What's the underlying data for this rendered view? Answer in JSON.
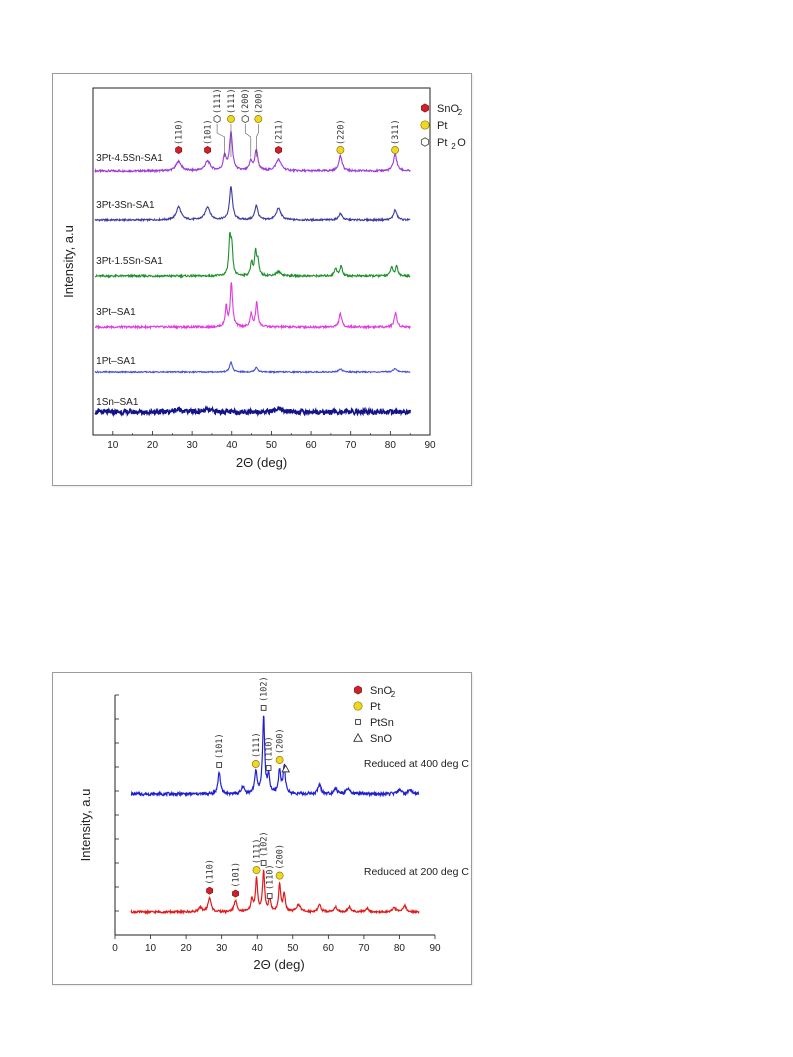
{
  "chart_data": [
    {
      "type": "line",
      "xlabel": "2Θ (deg)",
      "ylabel": "Intensity, a.u",
      "xlim": [
        5,
        90
      ],
      "xticks": [
        10,
        20,
        30,
        40,
        50,
        60,
        70,
        80,
        90
      ],
      "legend": {
        "placement": "top-right",
        "entries": [
          {
            "marker": "hexagon-filled",
            "color": "#d0202a",
            "label": "SnO",
            "sub": "2"
          },
          {
            "marker": "circle-filled",
            "color": "#f0d820",
            "label": "Pt",
            "sub": ""
          },
          {
            "marker": "hexagon-open",
            "color": "#555555",
            "label": "Pt",
            "sub": "2",
            "suffix": "O"
          }
        ]
      },
      "series": [
        {
          "name": "3Pt-4.5Sn-SA1",
          "color": "#9b3ad6",
          "peaks": [
            {
              "x": 26.6,
              "h": 0.25,
              "w": 0.8
            },
            {
              "x": 33.9,
              "h": 0.25,
              "w": 0.8
            },
            {
              "x": 38.2,
              "h": 0.4,
              "w": 0.4
            },
            {
              "x": 39.8,
              "h": 1.0,
              "w": 0.45
            },
            {
              "x": 44.8,
              "h": 0.25,
              "w": 0.4
            },
            {
              "x": 46.2,
              "h": 0.55,
              "w": 0.45
            },
            {
              "x": 51.8,
              "h": 0.3,
              "w": 0.8
            },
            {
              "x": 67.4,
              "h": 0.4,
              "w": 0.5
            },
            {
              "x": 81.2,
              "h": 0.45,
              "w": 0.5
            }
          ]
        },
        {
          "name": "3Pt-3Sn-SA1",
          "color": "#3a3aa0",
          "peaks": [
            {
              "x": 26.6,
              "h": 0.4,
              "w": 0.7
            },
            {
              "x": 33.9,
              "h": 0.4,
              "w": 0.7
            },
            {
              "x": 39.8,
              "h": 1.0,
              "w": 0.45
            },
            {
              "x": 46.2,
              "h": 0.45,
              "w": 0.45
            },
            {
              "x": 51.8,
              "h": 0.35,
              "w": 0.7
            },
            {
              "x": 67.4,
              "h": 0.2,
              "w": 0.5
            },
            {
              "x": 81.2,
              "h": 0.3,
              "w": 0.5
            }
          ]
        },
        {
          "name": "3Pt-1.5Sn-SA1",
          "color": "#1e8f2a",
          "peaks": [
            {
              "x": 39.5,
              "h": 0.9,
              "w": 0.3
            },
            {
              "x": 40.0,
              "h": 0.7,
              "w": 0.3
            },
            {
              "x": 45.0,
              "h": 0.35,
              "w": 0.3
            },
            {
              "x": 46.0,
              "h": 0.6,
              "w": 0.3
            },
            {
              "x": 46.6,
              "h": 0.35,
              "w": 0.3
            },
            {
              "x": 51.8,
              "h": 0.1,
              "w": 0.8
            },
            {
              "x": 66.2,
              "h": 0.2,
              "w": 0.35
            },
            {
              "x": 67.6,
              "h": 0.25,
              "w": 0.35
            },
            {
              "x": 80.3,
              "h": 0.22,
              "w": 0.35
            },
            {
              "x": 81.6,
              "h": 0.25,
              "w": 0.35
            }
          ]
        },
        {
          "name": "3Pt–SA1",
          "color": "#e03ae0",
          "peaks": [
            {
              "x": 38.6,
              "h": 0.45,
              "w": 0.3
            },
            {
              "x": 39.9,
              "h": 1.0,
              "w": 0.35
            },
            {
              "x": 44.9,
              "h": 0.3,
              "w": 0.3
            },
            {
              "x": 46.3,
              "h": 0.55,
              "w": 0.35
            },
            {
              "x": 67.4,
              "h": 0.3,
              "w": 0.4
            },
            {
              "x": 81.3,
              "h": 0.32,
              "w": 0.4
            }
          ]
        },
        {
          "name": "1Pt–SA1",
          "color": "#4a50d8",
          "peaks": [
            {
              "x": 39.8,
              "h": 0.4,
              "w": 0.4
            },
            {
              "x": 46.2,
              "h": 0.2,
              "w": 0.4
            },
            {
              "x": 67.4,
              "h": 0.12,
              "w": 0.5
            },
            {
              "x": 81.2,
              "h": 0.15,
              "w": 0.5
            }
          ]
        },
        {
          "name": "1Sn–SA1",
          "color": "#14148a",
          "peaks": [
            {
              "x": 26.6,
              "h": 0.18,
              "w": 1.2
            },
            {
              "x": 33.9,
              "h": 0.15,
              "w": 1.2
            },
            {
              "x": 51.8,
              "h": 0.18,
              "w": 1.4
            }
          ]
        }
      ],
      "annotations": [
        {
          "hkl": "(110)",
          "x": 26.6,
          "marker": "hexagon-filled"
        },
        {
          "hkl": "(101)",
          "x": 33.9,
          "marker": "hexagon-filled"
        },
        {
          "hkl": "(111)",
          "x": 38.2,
          "marker": "hexagon-open"
        },
        {
          "hkl": "(111)",
          "x": 39.8,
          "marker": "circle-filled"
        },
        {
          "hkl": "(200)",
          "x": 44.8,
          "marker": "hexagon-open"
        },
        {
          "hkl": "(200)",
          "x": 46.2,
          "marker": "circle-filled"
        },
        {
          "hkl": "(211)",
          "x": 51.8,
          "marker": "hexagon-filled"
        },
        {
          "hkl": "(220)",
          "x": 67.4,
          "marker": "circle-filled"
        },
        {
          "hkl": "(311)",
          "x": 81.2,
          "marker": "circle-filled"
        }
      ]
    },
    {
      "type": "line",
      "xlabel": "2Θ (deg)",
      "ylabel": "Intensity, a.u",
      "xlim": [
        0,
        90
      ],
      "xticks": [
        0,
        10,
        20,
        30,
        40,
        50,
        60,
        70,
        80,
        90
      ],
      "legend": {
        "placement": "top-right",
        "entries": [
          {
            "marker": "hexagon-filled",
            "color": "#d0202a",
            "label": "SnO",
            "sub": "2"
          },
          {
            "marker": "circle-filled",
            "color": "#f0d820",
            "label": "Pt",
            "sub": ""
          },
          {
            "marker": "square-open",
            "color": "#333333",
            "label": "PtSn",
            "sub": ""
          },
          {
            "marker": "triangle-open",
            "color": "#333333",
            "label": "SnO",
            "sub": ""
          }
        ]
      },
      "series": [
        {
          "name": "Reduced at 400 deg C",
          "color": "#2020d0",
          "peaks": [
            {
              "x": 29.3,
              "h": 0.28,
              "w": 0.4
            },
            {
              "x": 36.0,
              "h": 0.1,
              "w": 0.4
            },
            {
              "x": 39.6,
              "h": 0.28,
              "w": 0.4
            },
            {
              "x": 41.8,
              "h": 1.0,
              "w": 0.35
            },
            {
              "x": 43.2,
              "h": 0.22,
              "w": 0.35
            },
            {
              "x": 46.3,
              "h": 0.3,
              "w": 0.4
            },
            {
              "x": 47.6,
              "h": 0.35,
              "w": 0.35
            },
            {
              "x": 57.5,
              "h": 0.12,
              "w": 0.5
            },
            {
              "x": 62.0,
              "h": 0.08,
              "w": 0.5
            },
            {
              "x": 65.5,
              "h": 0.07,
              "w": 0.5
            },
            {
              "x": 80.0,
              "h": 0.06,
              "w": 0.5
            },
            {
              "x": 83.0,
              "h": 0.06,
              "w": 0.5
            }
          ]
        },
        {
          "name": "Reduced at 200 deg C",
          "color": "#e01a1a",
          "peaks": [
            {
              "x": 24.0,
              "h": 0.08,
              "w": 0.6
            },
            {
              "x": 26.6,
              "h": 0.28,
              "w": 0.5
            },
            {
              "x": 33.9,
              "h": 0.22,
              "w": 0.5
            },
            {
              "x": 38.5,
              "h": 0.25,
              "w": 0.35
            },
            {
              "x": 39.8,
              "h": 0.65,
              "w": 0.35
            },
            {
              "x": 41.8,
              "h": 0.8,
              "w": 0.35
            },
            {
              "x": 43.5,
              "h": 0.25,
              "w": 0.35
            },
            {
              "x": 46.3,
              "h": 0.55,
              "w": 0.35
            },
            {
              "x": 47.6,
              "h": 0.35,
              "w": 0.35
            },
            {
              "x": 51.6,
              "h": 0.15,
              "w": 0.6
            },
            {
              "x": 57.5,
              "h": 0.14,
              "w": 0.5
            },
            {
              "x": 62.0,
              "h": 0.1,
              "w": 0.5
            },
            {
              "x": 66.0,
              "h": 0.1,
              "w": 0.5
            },
            {
              "x": 71.0,
              "h": 0.07,
              "w": 0.5
            },
            {
              "x": 78.5,
              "h": 0.09,
              "w": 0.5
            },
            {
              "x": 81.5,
              "h": 0.13,
              "w": 0.5
            }
          ]
        }
      ],
      "annotations": [
        {
          "hkl": "(101)",
          "x": 29.3,
          "marker": "square-open",
          "series": 0
        },
        {
          "hkl": "(111)",
          "x": 39.6,
          "marker": "circle-filled",
          "series": 0
        },
        {
          "hkl": "(102)",
          "x": 41.8,
          "marker": "square-open",
          "series": 0
        },
        {
          "hkl": "(110)",
          "x": 43.2,
          "marker": "square-open",
          "series": 0
        },
        {
          "hkl": "(200)",
          "x": 46.3,
          "marker": "circle-filled",
          "series": 0
        },
        {
          "hkl": "",
          "x": 48.0,
          "marker": "triangle-open",
          "series": 0
        },
        {
          "hkl": "(110)",
          "x": 26.6,
          "marker": "hexagon-filled",
          "series": 1
        },
        {
          "hkl": "(101)",
          "x": 33.9,
          "marker": "hexagon-filled",
          "series": 1
        },
        {
          "hkl": "(111)",
          "x": 39.8,
          "marker": "circle-filled",
          "series": 1
        },
        {
          "hkl": "(102)",
          "x": 41.8,
          "marker": "square-open",
          "series": 1
        },
        {
          "hkl": "(110)",
          "x": 43.5,
          "marker": "square-open",
          "series": 1
        },
        {
          "hkl": "(200)",
          "x": 46.3,
          "marker": "circle-filled",
          "series": 1
        }
      ]
    }
  ]
}
